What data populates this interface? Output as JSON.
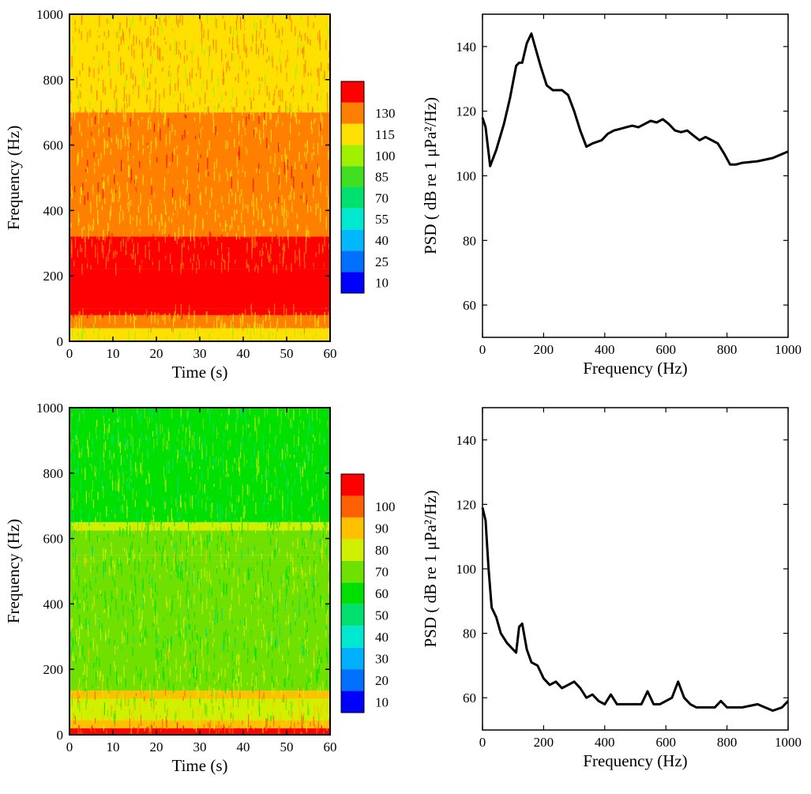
{
  "chart_data": [
    {
      "type": "heatmap",
      "panel": "top-left",
      "xlabel": "Time (s)",
      "ylabel": "Frequency (Hz)",
      "xlim": [
        0,
        60
      ],
      "ylim": [
        0,
        1000
      ],
      "xticks": [
        0,
        10,
        20,
        30,
        40,
        50,
        60
      ],
      "yticks": [
        0,
        200,
        400,
        600,
        800,
        1000
      ],
      "colorbar": {
        "levels": [
          10,
          25,
          40,
          55,
          70,
          85,
          100,
          115,
          130
        ],
        "colors": [
          "#0000ff",
          "#0070ff",
          "#00b8ff",
          "#00e8d0",
          "#00e070",
          "#40e020",
          "#a0f000",
          "#ffe000",
          "#ff8000",
          "#ff0000"
        ]
      },
      "bands": [
        {
          "from": 0,
          "to": 40,
          "level": 100
        },
        {
          "from": 40,
          "to": 80,
          "level": 115
        },
        {
          "from": 80,
          "to": 100,
          "level": 130
        },
        {
          "from": 100,
          "to": 220,
          "level": 145
        },
        {
          "from": 220,
          "to": 320,
          "level": 130
        },
        {
          "from": 320,
          "to": 430,
          "level": 115
        },
        {
          "from": 430,
          "to": 700,
          "level": 118
        },
        {
          "from": 700,
          "to": 1000,
          "level": 112
        }
      ],
      "grid": false,
      "legend": "right"
    },
    {
      "type": "line",
      "panel": "top-right",
      "xlabel": "Frequency (Hz)",
      "ylabel": "PSD ( dB re 1 μPa²/Hz)",
      "xlim": [
        0,
        1000
      ],
      "ylim": [
        50,
        150
      ],
      "xticks": [
        0,
        200,
        400,
        600,
        800,
        1000
      ],
      "yticks": [
        60,
        80,
        100,
        120,
        140
      ],
      "x": [
        0,
        10,
        25,
        45,
        70,
        90,
        110,
        120,
        130,
        145,
        160,
        175,
        190,
        210,
        230,
        260,
        280,
        300,
        320,
        340,
        360,
        390,
        410,
        430,
        450,
        470,
        490,
        510,
        530,
        550,
        570,
        590,
        610,
        630,
        650,
        670,
        690,
        710,
        730,
        750,
        770,
        790,
        810,
        830,
        850,
        900,
        950,
        1000
      ],
      "y": [
        118,
        115,
        103,
        108,
        116,
        124,
        134,
        135,
        135,
        141,
        144,
        139,
        134,
        128,
        126.5,
        126.5,
        125,
        120,
        114,
        109,
        110,
        111,
        113,
        114,
        114.5,
        115,
        115.5,
        115,
        116,
        117,
        116.5,
        117.5,
        116,
        114,
        113.5,
        114,
        112.5,
        111,
        112,
        111,
        110,
        107,
        103.5,
        103.5,
        104,
        104.5,
        105.5,
        107.5
      ],
      "grid": false
    },
    {
      "type": "heatmap",
      "panel": "bottom-left",
      "xlabel": "Time (s)",
      "ylabel": "Frequency (Hz)",
      "xlim": [
        0,
        60
      ],
      "ylim": [
        0,
        1000
      ],
      "xticks": [
        0,
        10,
        20,
        30,
        40,
        50,
        60
      ],
      "yticks": [
        0,
        200,
        400,
        600,
        800,
        1000
      ],
      "colorbar": {
        "levels": [
          10,
          20,
          30,
          40,
          50,
          60,
          70,
          80,
          90,
          100
        ],
        "colors": [
          "#0000ff",
          "#0070ff",
          "#00b0ff",
          "#00e8d0",
          "#00e070",
          "#00e000",
          "#70e000",
          "#d0f000",
          "#ffc000",
          "#ff6000",
          "#ff0000"
        ]
      },
      "bands": [
        {
          "from": 0,
          "to": 20,
          "level": 105
        },
        {
          "from": 20,
          "to": 45,
          "level": 85
        },
        {
          "from": 45,
          "to": 110,
          "level": 72
        },
        {
          "from": 110,
          "to": 135,
          "level": 82
        },
        {
          "from": 135,
          "to": 250,
          "level": 67
        },
        {
          "from": 250,
          "to": 530,
          "level": 62
        },
        {
          "from": 530,
          "to": 550,
          "level": 68
        },
        {
          "from": 550,
          "to": 625,
          "level": 62
        },
        {
          "from": 625,
          "to": 650,
          "level": 70
        },
        {
          "from": 650,
          "to": 1000,
          "level": 58
        }
      ],
      "grid": false,
      "legend": "right"
    },
    {
      "type": "line",
      "panel": "bottom-right",
      "xlabel": "Frequency (Hz)",
      "ylabel": "PSD ( dB re 1 μPa²/Hz)",
      "xlim": [
        0,
        1000
      ],
      "ylim": [
        50,
        150
      ],
      "xticks": [
        0,
        200,
        400,
        600,
        800,
        1000
      ],
      "yticks": [
        60,
        80,
        100,
        120,
        140
      ],
      "x": [
        0,
        10,
        20,
        30,
        45,
        60,
        80,
        100,
        110,
        120,
        130,
        145,
        160,
        180,
        200,
        220,
        240,
        260,
        280,
        300,
        320,
        340,
        360,
        380,
        400,
        420,
        440,
        460,
        500,
        520,
        540,
        560,
        580,
        600,
        620,
        640,
        660,
        680,
        700,
        720,
        760,
        780,
        800,
        850,
        900,
        950,
        980,
        1000
      ],
      "y": [
        119,
        115,
        100,
        88,
        85,
        80,
        77,
        75,
        74,
        82,
        83,
        75,
        71,
        70,
        66,
        64,
        65,
        63,
        64,
        65,
        63,
        60,
        61,
        59,
        58,
        61,
        58,
        58,
        58,
        58,
        62,
        58,
        58,
        59,
        60,
        65,
        60,
        58,
        57,
        57,
        57,
        59,
        57,
        57,
        58,
        56,
        57,
        59
      ],
      "grid": false
    }
  ]
}
